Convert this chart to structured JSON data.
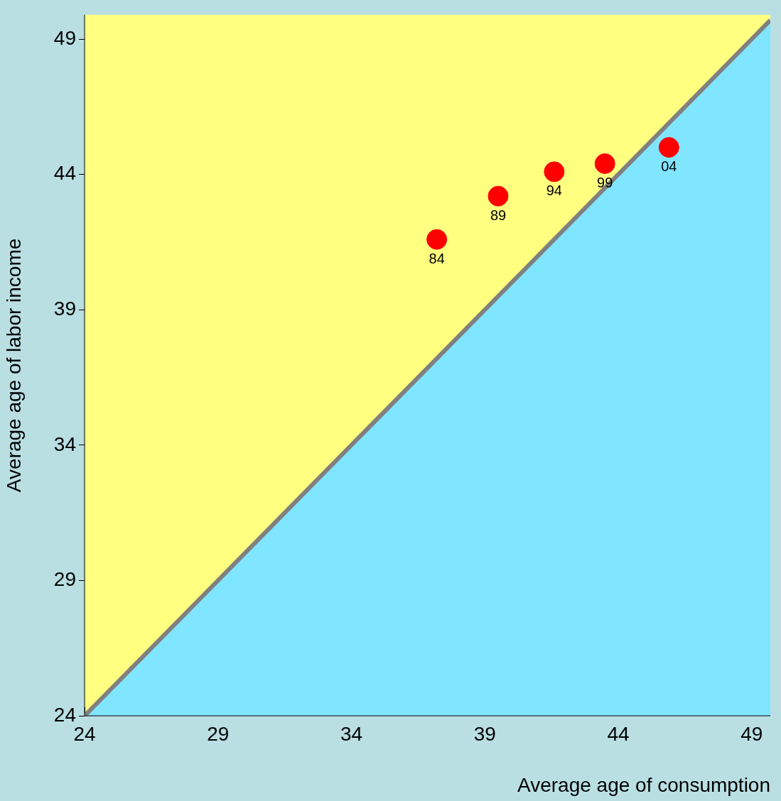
{
  "chart_data": {
    "type": "scatter",
    "xlabel": "Average age of consumption",
    "ylabel": "Average age of labor income",
    "xlim": [
      24,
      49.7
    ],
    "ylim": [
      24,
      49.9
    ],
    "xticks": [
      24,
      29,
      34,
      39,
      44,
      49
    ],
    "yticks": [
      24,
      29,
      34,
      39,
      44,
      49
    ],
    "grid": false,
    "legend": false,
    "series": [
      {
        "type": "line",
        "color": "#808080",
        "marker": "none",
        "x": [
          24,
          49.7
        ],
        "values": [
          24,
          49.7
        ]
      },
      {
        "color": "#ff0000",
        "marker": "circle",
        "x": [
          37.2,
          39.5,
          41.6,
          43.5,
          45.9
        ],
        "values": [
          41.6,
          43.2,
          44.1,
          44.4,
          45.0
        ]
      }
    ],
    "annotations": [
      {
        "text": "84",
        "x": 37.2,
        "y": 41.6
      },
      {
        "text": "89",
        "x": 39.5,
        "y": 43.2
      },
      {
        "text": "94",
        "x": 41.6,
        "y": 44.1
      },
      {
        "text": "99",
        "x": 43.5,
        "y": 44.4
      },
      {
        "text": "04",
        "x": 45.9,
        "y": 45.0
      }
    ]
  }
}
